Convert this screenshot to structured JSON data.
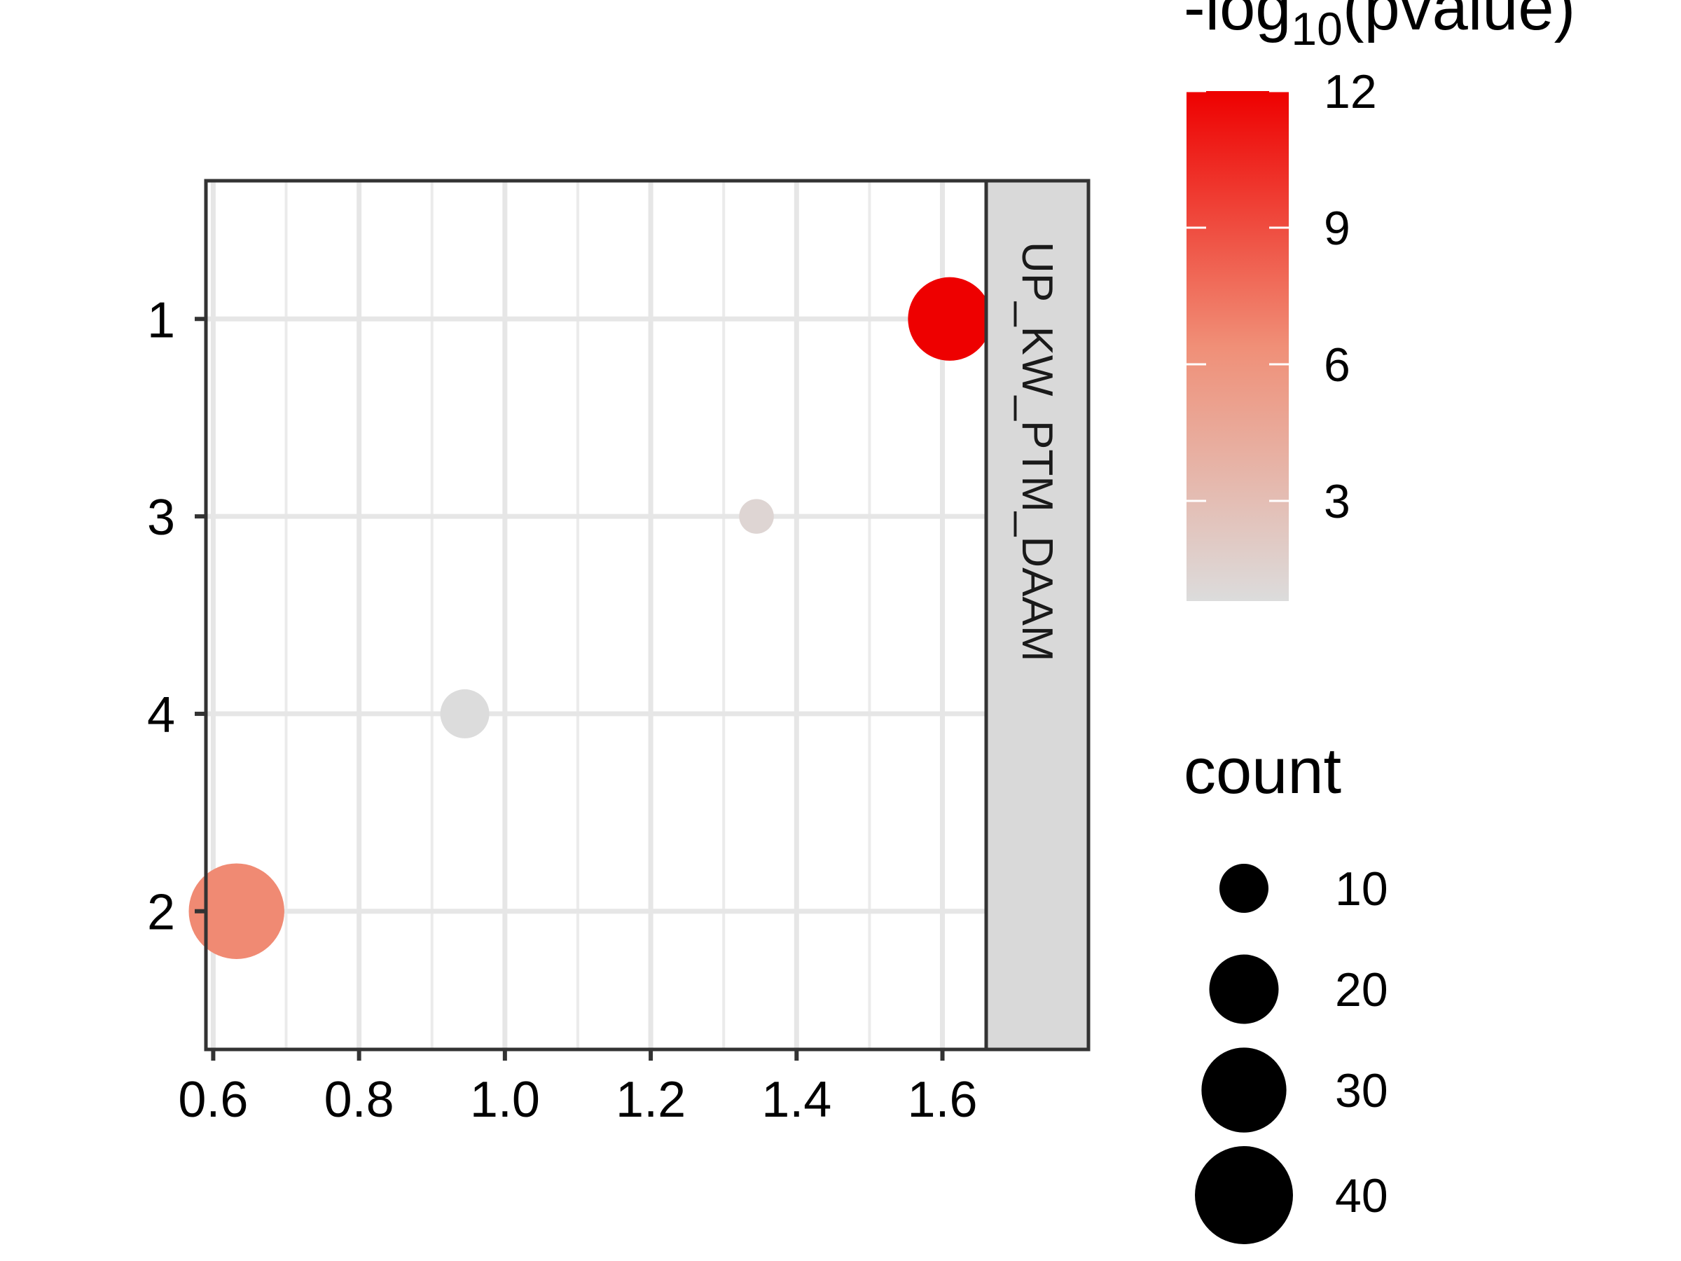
{
  "chart_data": {
    "type": "scatter",
    "title": "",
    "xlabel": "",
    "ylabel": "",
    "xlim": [
      0.59,
      1.66
    ],
    "x_ticks": [
      "0.6",
      "0.8",
      "1.0",
      "1.2",
      "1.4",
      "1.6"
    ],
    "y_categories": [
      "1",
      "3",
      "4",
      "2"
    ],
    "facet_label": "UP_KW_PTM_DAAM",
    "grid": true,
    "points": [
      {
        "y": "1",
        "x": 1.61,
        "count": 29,
        "neglog10p": 12.0
      },
      {
        "y": "3",
        "x": 1.345,
        "count": 5,
        "neglog10p": 1.3
      },
      {
        "y": "4",
        "x": 0.945,
        "count": 10,
        "neglog10p": 0.8
      },
      {
        "y": "2",
        "x": 0.632,
        "count": 38,
        "neglog10p": 6.6
      }
    ],
    "color_legend": {
      "title_parts": [
        "-log",
        "10",
        "(pvalue)"
      ],
      "min": 0.8,
      "max": 12.0,
      "ticks": [
        "3",
        "6",
        "9",
        "12"
      ],
      "low_color": "#dcdcdc",
      "high_color": "#ee0000"
    },
    "size_legend": {
      "title": "count",
      "entries": [
        "10",
        "20",
        "30",
        "40"
      ]
    }
  }
}
